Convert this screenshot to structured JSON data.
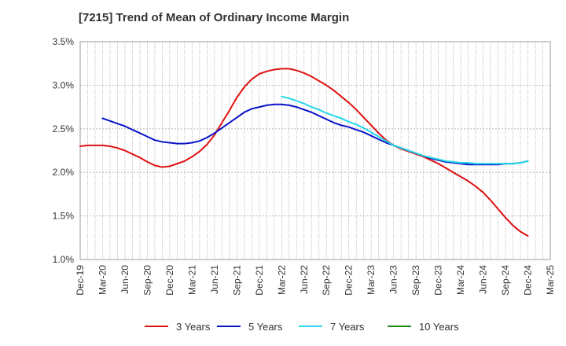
{
  "chart_data": {
    "type": "line",
    "title": "[7215]  Trend of Mean of Ordinary Income Margin",
    "xlabel": "",
    "ylabel": "",
    "x_ticks": [
      "Dec-19",
      "Mar-20",
      "Jun-20",
      "Sep-20",
      "Dec-20",
      "Mar-21",
      "Jun-21",
      "Sep-21",
      "Dec-21",
      "Mar-22",
      "Jun-22",
      "Sep-22",
      "Dec-22",
      "Mar-23",
      "Jun-23",
      "Sep-23",
      "Dec-23",
      "Mar-24",
      "Jun-24",
      "Sep-24",
      "Dec-24",
      "Mar-25"
    ],
    "y_ticks": [
      "1.0%",
      "1.5%",
      "2.0%",
      "2.5%",
      "3.0%",
      "3.5%"
    ],
    "ylim": [
      1.0,
      3.5
    ],
    "grid": true,
    "legend_position": "bottom",
    "series": [
      {
        "name": "3 Years",
        "color": "#dd1111",
        "x": [
          "Dec-19",
          "Jan-20",
          "Feb-20",
          "Mar-20",
          "Apr-20",
          "May-20",
          "Jun-20",
          "Jul-20",
          "Aug-20",
          "Sep-20",
          "Oct-20",
          "Nov-20",
          "Dec-20",
          "Jan-21",
          "Feb-21",
          "Mar-21",
          "Apr-21",
          "May-21",
          "Jun-21",
          "Jul-21",
          "Aug-21",
          "Sep-21",
          "Oct-21",
          "Nov-21",
          "Dec-21",
          "Jan-22",
          "Feb-22",
          "Mar-22",
          "Apr-22",
          "May-22",
          "Jun-22",
          "Jul-22",
          "Aug-22",
          "Sep-22",
          "Oct-22",
          "Nov-22",
          "Dec-22",
          "Jan-23",
          "Feb-23",
          "Mar-23",
          "Apr-23",
          "May-23",
          "Jun-23",
          "Jul-23",
          "Aug-23",
          "Sep-23",
          "Oct-23",
          "Nov-23",
          "Dec-23",
          "Jan-24",
          "Feb-24",
          "Mar-24",
          "Apr-24",
          "May-24",
          "Jun-24",
          "Jul-24",
          "Aug-24",
          "Sep-24",
          "Oct-24",
          "Nov-24",
          "Dec-24"
        ],
        "values": [
          2.3,
          2.31,
          2.31,
          2.31,
          2.3,
          2.28,
          2.25,
          2.21,
          2.17,
          2.12,
          2.08,
          2.06,
          2.07,
          2.1,
          2.13,
          2.18,
          2.24,
          2.32,
          2.43,
          2.57,
          2.71,
          2.86,
          2.98,
          3.07,
          3.13,
          3.16,
          3.18,
          3.19,
          3.19,
          3.17,
          3.14,
          3.1,
          3.05,
          3.0,
          2.94,
          2.87,
          2.8,
          2.72,
          2.63,
          2.54,
          2.45,
          2.37,
          2.31,
          2.27,
          2.24,
          2.21,
          2.18,
          2.14,
          2.1,
          2.05,
          2.0,
          1.95,
          1.9,
          1.84,
          1.77,
          1.68,
          1.58,
          1.48,
          1.39,
          1.32,
          1.27
        ]
      },
      {
        "name": "5 Years",
        "color": "#0a14c8",
        "x": [
          "Mar-20",
          "Apr-20",
          "May-20",
          "Jun-20",
          "Jul-20",
          "Aug-20",
          "Sep-20",
          "Oct-20",
          "Nov-20",
          "Dec-20",
          "Jan-21",
          "Feb-21",
          "Mar-21",
          "Apr-21",
          "May-21",
          "Jun-21",
          "Jul-21",
          "Aug-21",
          "Sep-21",
          "Oct-21",
          "Nov-21",
          "Dec-21",
          "Jan-22",
          "Feb-22",
          "Mar-22",
          "Apr-22",
          "May-22",
          "Jun-22",
          "Jul-22",
          "Aug-22",
          "Sep-22",
          "Oct-22",
          "Nov-22",
          "Dec-22",
          "Jan-23",
          "Feb-23",
          "Mar-23",
          "Apr-23",
          "May-23",
          "Jun-23",
          "Jul-23",
          "Aug-23",
          "Sep-23",
          "Oct-23",
          "Nov-23",
          "Dec-23",
          "Jan-24",
          "Feb-24",
          "Mar-24",
          "Apr-24",
          "May-24",
          "Jun-24",
          "Jul-24",
          "Aug-24",
          "Sep-24",
          "Oct-24",
          "Nov-24",
          "Dec-24"
        ],
        "values": [
          2.62,
          2.59,
          2.56,
          2.53,
          2.49,
          2.45,
          2.41,
          2.37,
          2.35,
          2.34,
          2.33,
          2.33,
          2.34,
          2.36,
          2.4,
          2.45,
          2.51,
          2.57,
          2.63,
          2.69,
          2.73,
          2.75,
          2.77,
          2.78,
          2.78,
          2.77,
          2.75,
          2.72,
          2.69,
          2.65,
          2.61,
          2.57,
          2.54,
          2.52,
          2.49,
          2.46,
          2.42,
          2.38,
          2.34,
          2.31,
          2.28,
          2.25,
          2.22,
          2.19,
          2.16,
          2.14,
          2.12,
          2.11,
          2.1,
          2.09,
          2.09,
          2.09,
          2.09,
          2.09,
          2.1,
          2.1,
          2.11,
          2.13
        ]
      },
      {
        "name": "7 Years",
        "color": "#22d8e8",
        "x": [
          "Mar-22",
          "Apr-22",
          "May-22",
          "Jun-22",
          "Jul-22",
          "Aug-22",
          "Sep-22",
          "Oct-22",
          "Nov-22",
          "Dec-22",
          "Jan-23",
          "Feb-23",
          "Mar-23",
          "Apr-23",
          "May-23",
          "Jun-23",
          "Jul-23",
          "Aug-23",
          "Sep-23",
          "Oct-23",
          "Nov-23",
          "Dec-23",
          "Jan-24",
          "Feb-24",
          "Mar-24",
          "Apr-24",
          "May-24",
          "Jun-24",
          "Jul-24",
          "Aug-24",
          "Sep-24",
          "Oct-24",
          "Nov-24",
          "Dec-24"
        ],
        "values": [
          2.87,
          2.85,
          2.82,
          2.79,
          2.75,
          2.72,
          2.68,
          2.65,
          2.62,
          2.58,
          2.55,
          2.51,
          2.46,
          2.41,
          2.36,
          2.31,
          2.28,
          2.25,
          2.22,
          2.19,
          2.17,
          2.15,
          2.13,
          2.12,
          2.11,
          2.11,
          2.1,
          2.1,
          2.1,
          2.1,
          2.1,
          2.1,
          2.11,
          2.13
        ]
      },
      {
        "name": "10 Years",
        "color": "#168c16",
        "x": [],
        "values": []
      }
    ]
  }
}
